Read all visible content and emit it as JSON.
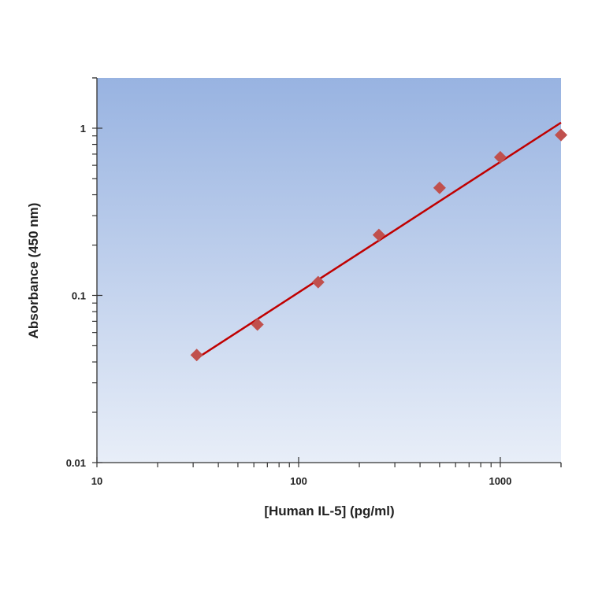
{
  "chart_data": {
    "type": "scatter",
    "title": "",
    "xlabel": "[Human IL-5] (pg/ml)",
    "ylabel": "Absorbance (450 nm)",
    "xscale": "log",
    "yscale": "log",
    "xlim": [
      10,
      2000
    ],
    "ylim": [
      0.01,
      2
    ],
    "xticks": [
      {
        "v": 10,
        "label": "10"
      },
      {
        "v": 100,
        "label": "100"
      },
      {
        "v": 1000,
        "label": "1000"
      }
    ],
    "yticks": [
      {
        "v": 0.01,
        "label": "0.01"
      },
      {
        "v": 0.1,
        "label": "0.1"
      },
      {
        "v": 1,
        "label": "1"
      }
    ],
    "grid": false,
    "legend": "none",
    "points": {
      "x": [
        31.25,
        62.5,
        125,
        250,
        500,
        1000,
        2000
      ],
      "y": [
        0.044,
        0.067,
        0.12,
        0.23,
        0.44,
        0.67,
        0.91
      ],
      "marker": "diamond",
      "color": "#c0504d"
    },
    "fit_line": {
      "x": [
        31.25,
        2000
      ],
      "y": [
        0.042,
        1.08
      ],
      "color": "#c00000"
    },
    "background_gradient": [
      "#98b3e1",
      "#e8eef8"
    ]
  }
}
